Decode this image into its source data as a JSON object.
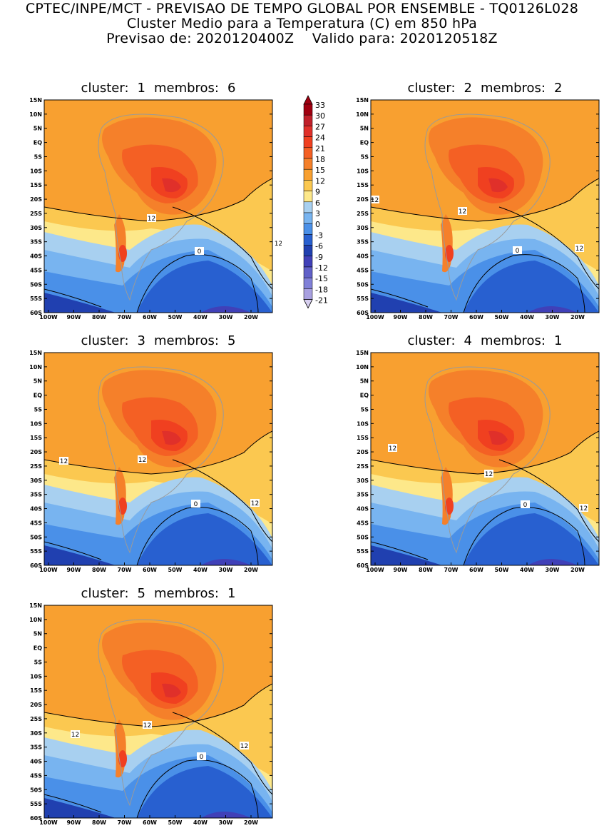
{
  "header": {
    "line1": "CPTEC/INPE/MCT - PREVISAO DE TEMPO GLOBAL POR ENSEMBLE - TQ0126L028",
    "line2": "Cluster Medio para a Temperatura (C) em 850 hPa",
    "line3_label_a": "Previsao de:",
    "line3_value_a": "2020120400Z",
    "line3_label_b": "Valido para:",
    "line3_value_b": "2020120518Z"
  },
  "axes": {
    "lat_ticks": [
      "15N",
      "10N",
      "5N",
      "EQ",
      "5S",
      "10S",
      "15S",
      "20S",
      "25S",
      "30S",
      "35S",
      "40S",
      "45S",
      "50S",
      "55S",
      "60S"
    ],
    "lon_ticks": [
      "100W",
      "90W",
      "80W",
      "70W",
      "60W",
      "50W",
      "40W",
      "30W",
      "20W"
    ]
  },
  "colorbar": {
    "levels": [
      "33",
      "30",
      "27",
      "24",
      "21",
      "18",
      "15",
      "12",
      "9",
      "6",
      "3",
      "0",
      "-3",
      "-6",
      "-9",
      "-12",
      "-15",
      "-18",
      "-21"
    ],
    "colors": [
      "#a00010",
      "#c0202a",
      "#e0302a",
      "#f04020",
      "#f46024",
      "#f5802a",
      "#f8a030",
      "#fbc850",
      "#fde88a",
      "#a8d0f0",
      "#78b4f0",
      "#4a90e8",
      "#2860d0",
      "#2040b0",
      "#4040b8",
      "#6060c8",
      "#8080d8",
      "#a8a0e0",
      "#d8d0f0"
    ]
  },
  "panels": [
    {
      "cluster_label": "cluster:",
      "cluster": "1",
      "membros_label": "membros:",
      "membros": "6",
      "contour_labels": [
        "12",
        "12",
        "0"
      ]
    },
    {
      "cluster_label": "cluster:",
      "cluster": "2",
      "membros_label": "membros:",
      "membros": "2",
      "contour_labels": [
        "12",
        "12",
        "12",
        "0"
      ]
    },
    {
      "cluster_label": "cluster:",
      "cluster": "3",
      "membros_label": "membros:",
      "membros": "5",
      "contour_labels": [
        "12",
        "12",
        "12",
        "0"
      ]
    },
    {
      "cluster_label": "cluster:",
      "cluster": "4",
      "membros_label": "membros:",
      "membros": "1",
      "contour_labels": [
        "12",
        "12",
        "12",
        "0"
      ]
    },
    {
      "cluster_label": "cluster:",
      "cluster": "5",
      "membros_label": "membros:",
      "membros": "1",
      "contour_labels": [
        "12",
        "12",
        "12",
        "0"
      ]
    }
  ]
}
